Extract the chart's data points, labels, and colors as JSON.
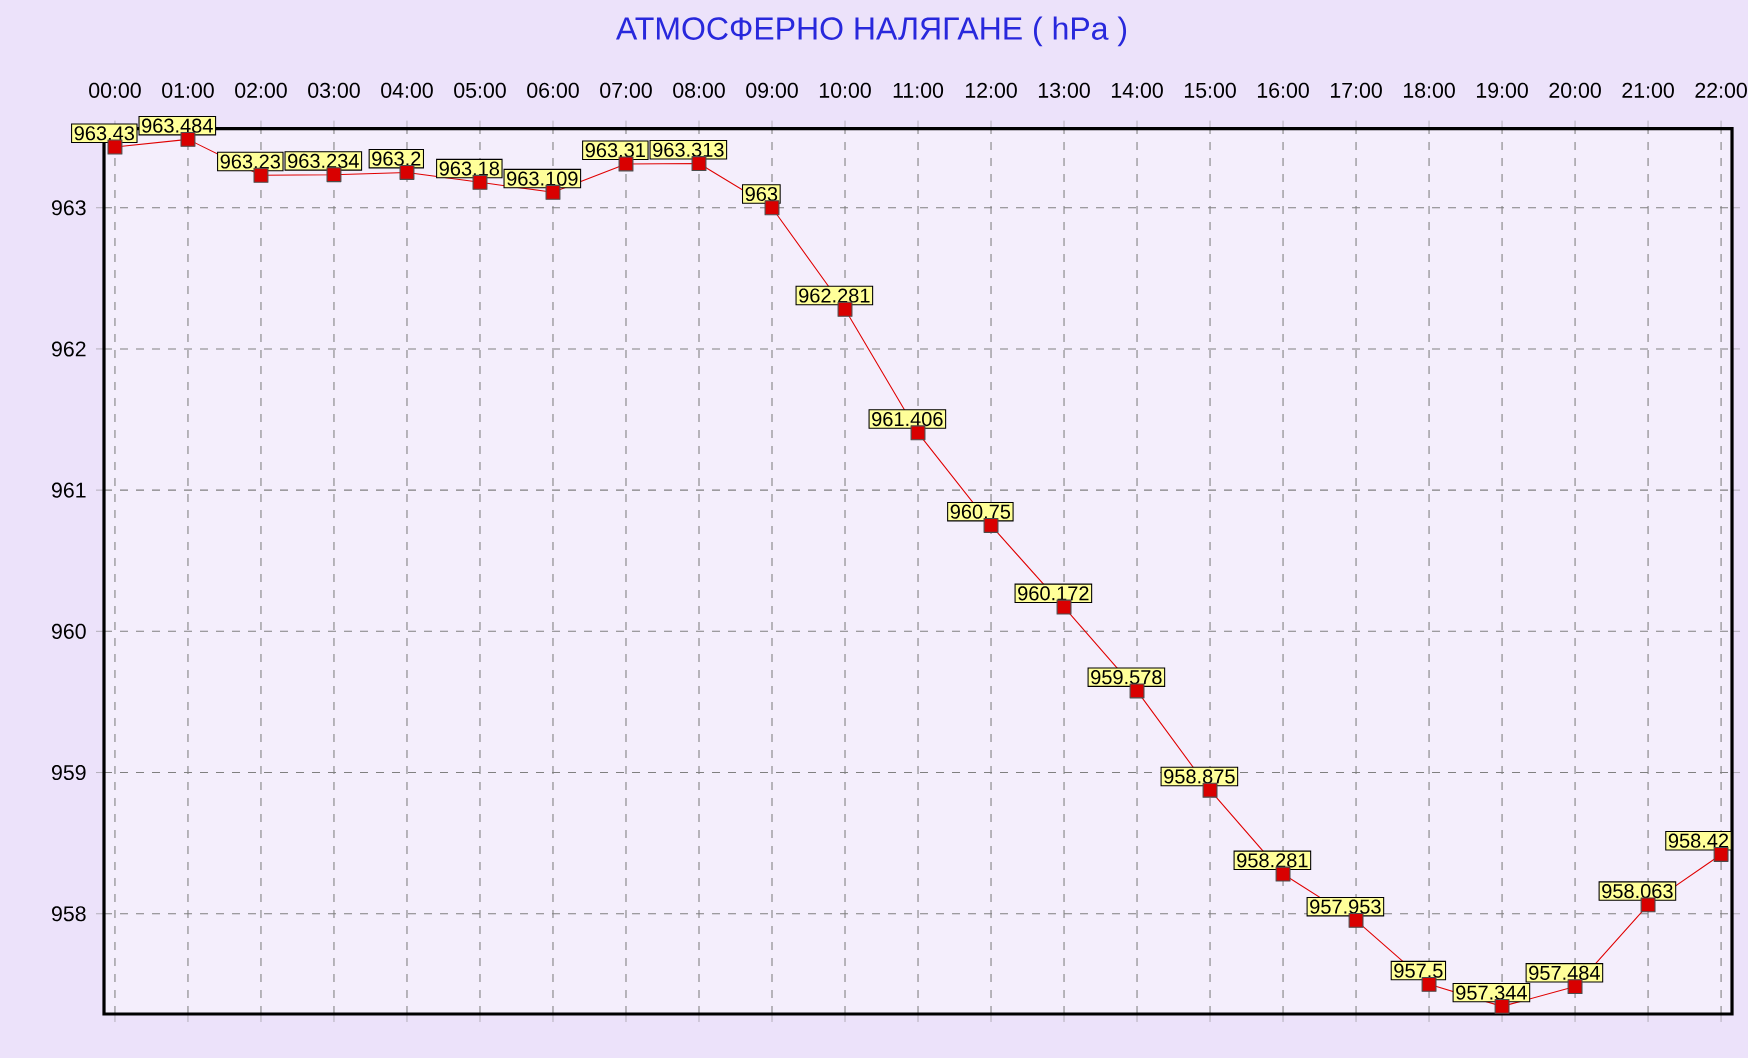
{
  "chart_data": {
    "type": "line",
    "title": "АТМОСФЕРНО НАЛЯГАНЕ  ( hPa )",
    "categories": [
      "00:00",
      "01:00",
      "02:00",
      "03:00",
      "04:00",
      "05:00",
      "06:00",
      "07:00",
      "08:00",
      "09:00",
      "10:00",
      "11:00",
      "12:00",
      "13:00",
      "14:00",
      "15:00",
      "16:00",
      "17:00",
      "18:00",
      "19:00",
      "20:00",
      "21:00",
      "22:00"
    ],
    "series": [
      {
        "color": "#e00000",
        "values": [
          963.43,
          963.484,
          963.23,
          963.234,
          963.25,
          963.18,
          963.109,
          963.31,
          963.313,
          963,
          962.281,
          961.406,
          960.75,
          960.172,
          959.578,
          958.875,
          958.281,
          957.953,
          957.5,
          957.344,
          957.484,
          958.063,
          958.42
        ],
        "value_labels": [
          "963.43",
          "963.484",
          "963.23",
          "963.234",
          "963.2",
          "963.18",
          "963.109",
          "963.31",
          "963.313",
          "963",
          "962.281",
          "961.406",
          "960.75",
          "960.172",
          "959.578",
          "958.875",
          "958.281",
          "957.953",
          "957.5",
          "957.344",
          "957.484",
          "958.063",
          "958.42"
        ]
      }
    ],
    "ylim": [
      957.29,
      963.56
    ],
    "yticks": [
      958,
      959,
      960,
      961,
      962,
      963
    ],
    "grid": true,
    "marker": "square",
    "line_style": "solid"
  }
}
